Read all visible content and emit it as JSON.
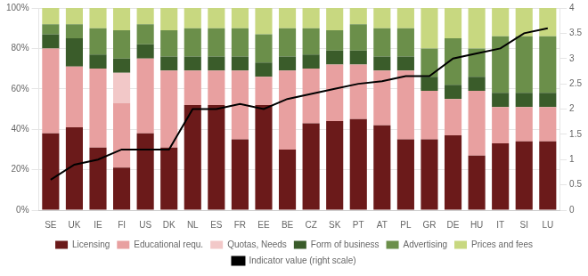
{
  "chart_data": {
    "type": "bar",
    "stacked": true,
    "grid": true,
    "legend": "bottom",
    "categories": [
      "SE",
      "UK",
      "IE",
      "FI",
      "US",
      "DK",
      "NL",
      "ES",
      "FR",
      "EE",
      "BE",
      "CZ",
      "SK",
      "PT",
      "AT",
      "PL",
      "GR",
      "DE",
      "HU",
      "IT",
      "SI",
      "LU"
    ],
    "series": [
      {
        "name": "Licensing",
        "color": "#6B1A1A",
        "values": [
          0.38,
          0.41,
          0.31,
          0.21,
          0.38,
          0.31,
          0.52,
          0.52,
          0.35,
          0.52,
          0.3,
          0.43,
          0.44,
          0.45,
          0.42,
          0.35,
          0.35,
          0.37,
          0.27,
          0.33,
          0.34,
          0.34
        ]
      },
      {
        "name": "Educational requ.",
        "color": "#E8A0A0",
        "values": [
          0.42,
          0.3,
          0.39,
          0.32,
          0.37,
          0.38,
          0.17,
          0.17,
          0.34,
          0.14,
          0.39,
          0.27,
          0.28,
          0.27,
          0.27,
          0.34,
          0.24,
          0.18,
          0.32,
          0.18,
          0.17,
          0.17
        ]
      },
      {
        "name": "Quotas, Needs",
        "color": "#F2C8C8",
        "values": [
          0.0,
          0.0,
          0.0,
          0.15,
          0.0,
          0.0,
          0.0,
          0.0,
          0.0,
          0.0,
          0.0,
          0.0,
          0.0,
          0.0,
          0.0,
          0.0,
          0.0,
          0.0,
          0.0,
          0.0,
          0.0,
          0.0
        ]
      },
      {
        "name": "Form of business",
        "color": "#3A5C2A",
        "values": [
          0.07,
          0.14,
          0.07,
          0.07,
          0.07,
          0.07,
          0.07,
          0.07,
          0.07,
          0.07,
          0.07,
          0.07,
          0.07,
          0.07,
          0.07,
          0.07,
          0.07,
          0.07,
          0.07,
          0.07,
          0.07,
          0.07
        ]
      },
      {
        "name": "Advertising",
        "color": "#6B8F4A",
        "values": [
          0.05,
          0.07,
          0.13,
          0.14,
          0.1,
          0.13,
          0.14,
          0.14,
          0.14,
          0.14,
          0.14,
          0.13,
          0.1,
          0.13,
          0.14,
          0.14,
          0.14,
          0.23,
          0.14,
          0.28,
          0.28,
          0.28
        ]
      },
      {
        "name": "Prices and fees",
        "color": "#C8D880",
        "values": [
          0.08,
          0.08,
          0.1,
          0.11,
          0.08,
          0.11,
          0.1,
          0.1,
          0.1,
          0.13,
          0.1,
          0.1,
          0.11,
          0.08,
          0.1,
          0.1,
          0.2,
          0.15,
          0.2,
          0.14,
          0.14,
          0.14
        ]
      },
      {
        "name": "Indicator value (right scale)",
        "type": "line",
        "color": "#000000",
        "axis": "y2",
        "values": [
          0.6,
          0.9,
          1.0,
          1.2,
          1.2,
          1.2,
          2.0,
          2.0,
          2.1,
          2.0,
          2.2,
          2.3,
          2.4,
          2.5,
          2.55,
          2.65,
          2.65,
          3.0,
          3.1,
          3.2,
          3.5,
          3.6
        ]
      }
    ],
    "ylim": [
      0,
      1.0
    ],
    "yticks": [
      {
        "value": 0.0,
        "label": "0%"
      },
      {
        "value": 0.2,
        "label": "20%"
      },
      {
        "value": 0.4,
        "label": "40%"
      },
      {
        "value": 0.6,
        "label": "60%"
      },
      {
        "value": 0.8,
        "label": "80%"
      },
      {
        "value": 1.0,
        "label": "100%"
      }
    ],
    "y2lim": [
      0,
      4.0
    ],
    "y2ticks": [
      0,
      0.5,
      1,
      1.5,
      2,
      2.5,
      3,
      3.5,
      4
    ]
  }
}
